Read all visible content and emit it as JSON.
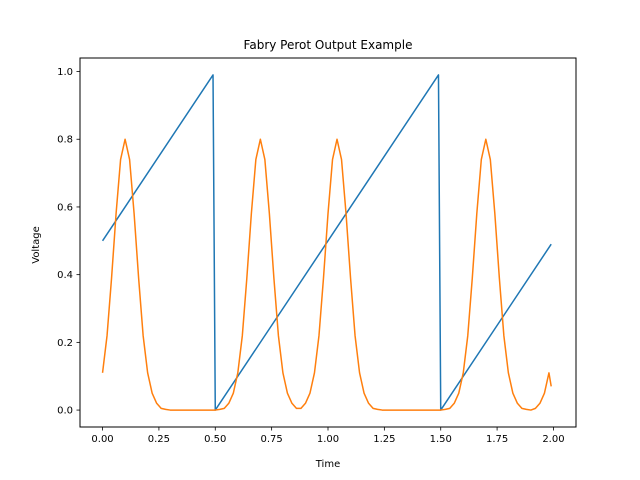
{
  "chart_data": {
    "type": "line",
    "title": "Fabry Perot Output Example",
    "xlabel": "Time",
    "ylabel": "Voltage",
    "xlim": [
      -0.1,
      2.1
    ],
    "ylim": [
      -0.05,
      1.04
    ],
    "x_ticks": [
      0.0,
      0.25,
      0.5,
      0.75,
      1.0,
      1.25,
      1.5,
      1.75,
      2.0
    ],
    "x_tick_labels": [
      "0.00",
      "0.25",
      "0.50",
      "0.75",
      "1.00",
      "1.25",
      "1.50",
      "1.75",
      "2.00"
    ],
    "y_ticks": [
      0.0,
      0.2,
      0.4,
      0.6,
      0.8,
      1.0
    ],
    "y_tick_labels": [
      "0.0",
      "0.2",
      "0.4",
      "0.6",
      "0.8",
      "1.0"
    ],
    "grid": false,
    "legend": "none",
    "series": [
      {
        "color": "#1f77b4",
        "x": [
          0.0,
          0.49,
          0.5,
          1.49,
          1.5,
          1.99
        ],
        "y": [
          0.5,
          0.99,
          0.0,
          0.99,
          0.0,
          0.49
        ]
      },
      {
        "color": "#ff7f0e",
        "x": [
          0.0,
          0.02,
          0.04,
          0.06,
          0.08,
          0.1,
          0.12,
          0.14,
          0.16,
          0.18,
          0.2,
          0.22,
          0.24,
          0.26,
          0.28,
          0.3,
          0.35,
          0.4,
          0.45,
          0.5,
          0.52,
          0.54,
          0.56,
          0.58,
          0.6,
          0.62,
          0.64,
          0.66,
          0.68,
          0.7,
          0.72,
          0.74,
          0.76,
          0.78,
          0.8,
          0.82,
          0.84,
          0.86,
          0.88,
          0.9,
          0.92,
          0.94,
          0.96,
          0.98,
          1.0,
          1.02,
          1.04,
          1.06,
          1.08,
          1.1,
          1.12,
          1.14,
          1.16,
          1.18,
          1.2,
          1.22,
          1.24,
          1.26,
          1.28,
          1.3,
          1.35,
          1.4,
          1.45,
          1.5,
          1.52,
          1.54,
          1.56,
          1.58,
          1.6,
          1.62,
          1.64,
          1.66,
          1.68,
          1.7,
          1.72,
          1.74,
          1.76,
          1.78,
          1.8,
          1.82,
          1.84,
          1.86,
          1.88,
          1.9,
          1.92,
          1.94,
          1.96,
          1.98,
          1.99
        ],
        "y": [
          0.11,
          0.22,
          0.39,
          0.58,
          0.74,
          0.8,
          0.74,
          0.58,
          0.39,
          0.22,
          0.11,
          0.05,
          0.02,
          0.005,
          0.002,
          0.0,
          0.0,
          0.0,
          0.0,
          0.0,
          0.002,
          0.005,
          0.02,
          0.05,
          0.11,
          0.22,
          0.39,
          0.58,
          0.74,
          0.8,
          0.74,
          0.58,
          0.39,
          0.22,
          0.11,
          0.05,
          0.02,
          0.005,
          0.005,
          0.02,
          0.05,
          0.11,
          0.22,
          0.39,
          0.58,
          0.74,
          0.8,
          0.74,
          0.58,
          0.39,
          0.22,
          0.11,
          0.05,
          0.02,
          0.005,
          0.002,
          0.0,
          0.0,
          0.0,
          0.0,
          0.0,
          0.0,
          0.0,
          0.0,
          0.002,
          0.005,
          0.02,
          0.05,
          0.11,
          0.22,
          0.39,
          0.58,
          0.74,
          0.8,
          0.74,
          0.58,
          0.39,
          0.22,
          0.11,
          0.05,
          0.02,
          0.005,
          0.002,
          0.0,
          0.005,
          0.02,
          0.05,
          0.11,
          0.07
        ]
      }
    ]
  }
}
